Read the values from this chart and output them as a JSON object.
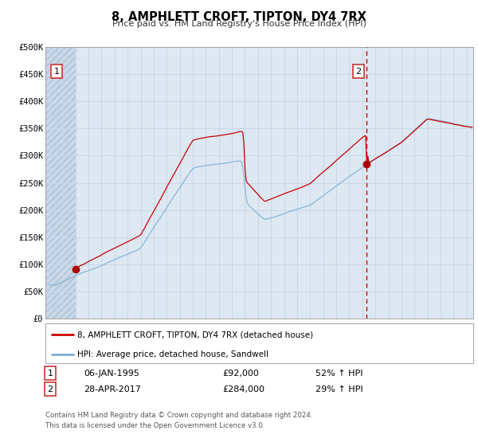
{
  "title": "8, AMPHLETT CROFT, TIPTON, DY4 7RX",
  "subtitle": "Price paid vs. HM Land Registry's House Price Index (HPI)",
  "legend_line1": "8, AMPHLETT CROFT, TIPTON, DY4 7RX (detached house)",
  "legend_line2": "HPI: Average price, detached house, Sandwell",
  "annotation1_date": "06-JAN-1995",
  "annotation1_price": "£92,000",
  "annotation1_hpi": "52% ↑ HPI",
  "annotation2_date": "28-APR-2017",
  "annotation2_price": "£284,000",
  "annotation2_hpi": "29% ↑ HPI",
  "footer1": "Contains HM Land Registry data © Crown copyright and database right 2024.",
  "footer2": "This data is licensed under the Open Government Licence v3.0.",
  "hpi_color": "#7aaed4",
  "price_color": "#cc0000",
  "dashed_vline_color": "#cc0000",
  "marker_color": "#aa0000",
  "grid_color": "#c8d8e8",
  "hatch_color": "#c0ccd8",
  "chart_bg": "#dde8f2",
  "plot_bg": "#ffffff",
  "ylim": [
    0,
    500000
  ],
  "yticks": [
    0,
    50000,
    100000,
    150000,
    200000,
    250000,
    300000,
    350000,
    400000,
    450000,
    500000
  ],
  "ytick_labels": [
    "£0",
    "£50K",
    "£100K",
    "£150K",
    "£200K",
    "£250K",
    "£300K",
    "£350K",
    "£400K",
    "£450K",
    "£500K"
  ],
  "xlim_start": 1992.7,
  "xlim_end": 2025.5,
  "marker1_x": 1995.02,
  "marker1_y": 92000,
  "marker2_x": 2017.33,
  "marker2_y": 284000,
  "vline_x": 2017.33,
  "hatch_end": 1995.0,
  "xtick_start": 1993,
  "xtick_end": 2025
}
